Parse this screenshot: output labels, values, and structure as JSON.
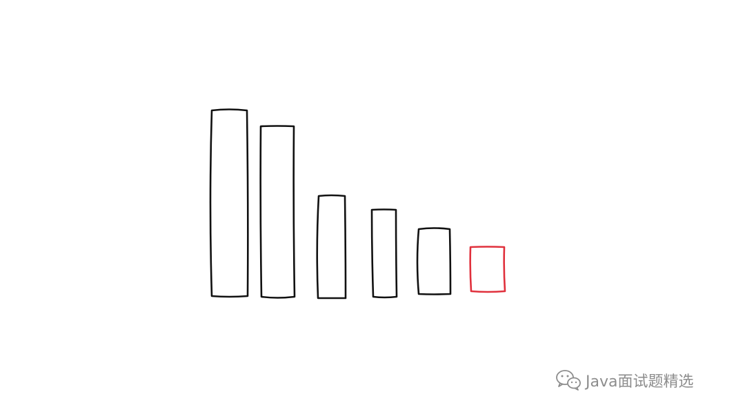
{
  "diagram": {
    "bars": [
      {
        "level": 1.0,
        "color": "#111111"
      },
      {
        "level": 0.92,
        "color": "#111111"
      },
      {
        "level": 0.55,
        "color": "#111111"
      },
      {
        "level": 0.47,
        "color": "#111111"
      },
      {
        "level": 0.35,
        "color": "#111111"
      },
      {
        "level": 0.24,
        "color": "#e0303c"
      }
    ]
  },
  "watermark": {
    "icon": "wechat-icon",
    "text": "Java面试题精选"
  }
}
